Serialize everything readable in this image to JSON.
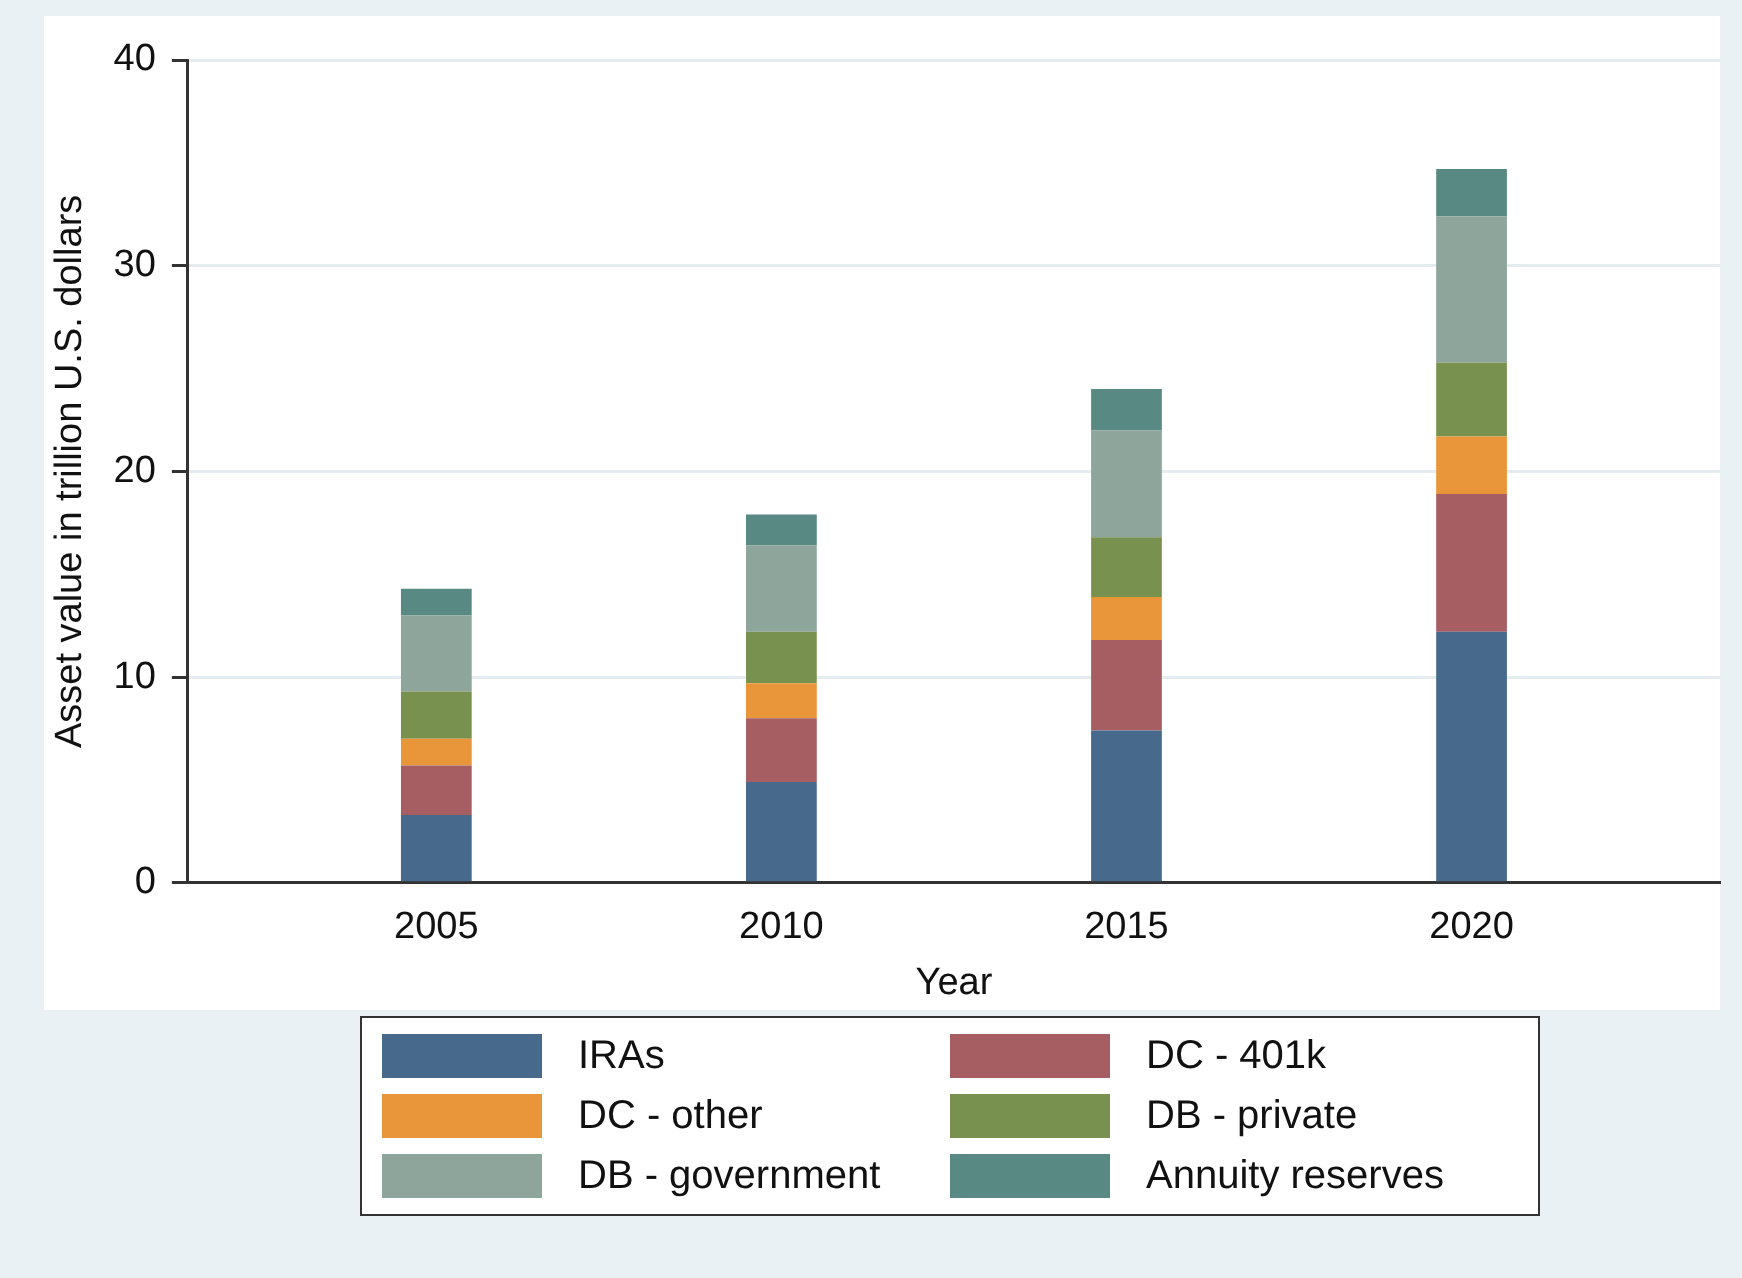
{
  "chart_data": {
    "type": "bar",
    "stacked": true,
    "xlabel": "Year",
    "ylabel": "Asset value in trillion U.S. dollars",
    "categories": [
      "2005",
      "2010",
      "2015",
      "2020"
    ],
    "series": [
      {
        "name": "IRAs",
        "color": "#476a8c",
        "values": [
          3.3,
          4.9,
          7.4,
          12.2
        ]
      },
      {
        "name": "DC - 401k",
        "color": "#a65e62",
        "values": [
          2.4,
          3.1,
          4.4,
          6.7
        ]
      },
      {
        "name": "DC - other",
        "color": "#e9963a",
        "values": [
          1.3,
          1.7,
          2.1,
          2.8
        ]
      },
      {
        "name": "DB - private",
        "color": "#79914f",
        "values": [
          2.3,
          2.5,
          2.9,
          3.6
        ]
      },
      {
        "name": "DB - government",
        "color": "#8da59b",
        "values": [
          3.7,
          4.2,
          5.2,
          7.1
        ]
      },
      {
        "name": "Annuity reserves",
        "color": "#588a83",
        "values": [
          1.3,
          1.5,
          2.0,
          2.3
        ]
      }
    ],
    "ylim": [
      0,
      40
    ],
    "yticks": [
      0,
      10,
      20,
      30,
      40
    ],
    "grid": "y",
    "legend": "bottom"
  }
}
